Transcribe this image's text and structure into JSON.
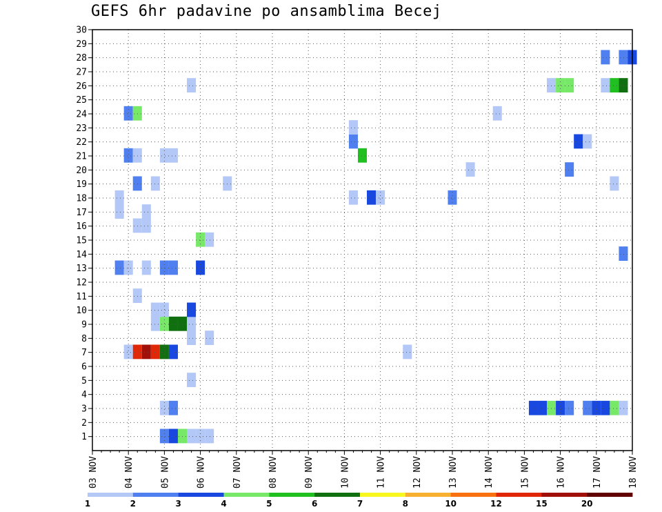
{
  "chart_data": {
    "type": "heatmap",
    "title": "GEFS 6hr padavine po ansamblima Becej",
    "y_ticks": [
      "1",
      "2",
      "3",
      "4",
      "5",
      "6",
      "7",
      "8",
      "9",
      "10",
      "11",
      "12",
      "13",
      "14",
      "15",
      "16",
      "17",
      "18",
      "19",
      "20",
      "21",
      "22",
      "23",
      "24",
      "25",
      "26",
      "27",
      "28",
      "29",
      "30"
    ],
    "x_ticks": [
      "03 NOV",
      "04 NOV",
      "05 NOV",
      "06 NOV",
      "07 NOV",
      "08 NOV",
      "09 NOV",
      "10 NOV",
      "11 NOV",
      "12 NOV",
      "13 NOV",
      "14 NOV",
      "15 NOV",
      "16 NOV",
      "17 NOV",
      "18 NOV"
    ],
    "time_step_hours": 6,
    "legend": {
      "labels": [
        "1",
        "2",
        "3",
        "4",
        "5",
        "6",
        "7",
        "8",
        "10",
        "12",
        "15",
        "20"
      ],
      "colors": [
        "#b4c8f8",
        "#5080f0",
        "#1848e0",
        "#78e868",
        "#20c020",
        "#107010",
        "#f8f820",
        "#f8b030",
        "#f87010",
        "#e02808",
        "#a01008",
        "#600000"
      ]
    },
    "cells": [
      {
        "member": 1,
        "step": 8,
        "cls": 1
      },
      {
        "member": 1,
        "step": 9,
        "cls": 2
      },
      {
        "member": 1,
        "step": 10,
        "cls": 3
      },
      {
        "member": 1,
        "step": 11,
        "cls": 0
      },
      {
        "member": 1,
        "step": 12,
        "cls": 0
      },
      {
        "member": 1,
        "step": 13,
        "cls": 0
      },
      {
        "member": 3,
        "step": 8,
        "cls": 0
      },
      {
        "member": 3,
        "step": 9,
        "cls": 1
      },
      {
        "member": 3,
        "step": 49,
        "cls": 2
      },
      {
        "member": 3,
        "step": 50,
        "cls": 2
      },
      {
        "member": 3,
        "step": 51,
        "cls": 3
      },
      {
        "member": 3,
        "step": 52,
        "cls": 2
      },
      {
        "member": 3,
        "step": 53,
        "cls": 1
      },
      {
        "member": 3,
        "step": 55,
        "cls": 1
      },
      {
        "member": 3,
        "step": 56,
        "cls": 2
      },
      {
        "member": 3,
        "step": 57,
        "cls": 2
      },
      {
        "member": 3,
        "step": 58,
        "cls": 3
      },
      {
        "member": 3,
        "step": 59,
        "cls": 0
      },
      {
        "member": 5,
        "step": 11,
        "cls": 0
      },
      {
        "member": 7,
        "step": 4,
        "cls": 0
      },
      {
        "member": 7,
        "step": 5,
        "cls": 9
      },
      {
        "member": 7,
        "step": 6,
        "cls": 10
      },
      {
        "member": 7,
        "step": 7,
        "cls": 9
      },
      {
        "member": 7,
        "step": 8,
        "cls": 5
      },
      {
        "member": 7,
        "step": 9,
        "cls": 2
      },
      {
        "member": 7,
        "step": 35,
        "cls": 0
      },
      {
        "member": 8,
        "step": 11,
        "cls": 0
      },
      {
        "member": 8,
        "step": 13,
        "cls": 0
      },
      {
        "member": 9,
        "step": 7,
        "cls": 0
      },
      {
        "member": 9,
        "step": 8,
        "cls": 3
      },
      {
        "member": 9,
        "step": 9,
        "cls": 5
      },
      {
        "member": 9,
        "step": 10,
        "cls": 5
      },
      {
        "member": 9,
        "step": 11,
        "cls": 0
      },
      {
        "member": 10,
        "step": 7,
        "cls": 0
      },
      {
        "member": 10,
        "step": 8,
        "cls": 0
      },
      {
        "member": 10,
        "step": 11,
        "cls": 2
      },
      {
        "member": 11,
        "step": 5,
        "cls": 0
      },
      {
        "member": 13,
        "step": 3,
        "cls": 1
      },
      {
        "member": 13,
        "step": 4,
        "cls": 0
      },
      {
        "member": 13,
        "step": 6,
        "cls": 0
      },
      {
        "member": 13,
        "step": 8,
        "cls": 1
      },
      {
        "member": 13,
        "step": 9,
        "cls": 1
      },
      {
        "member": 13,
        "step": 12,
        "cls": 2
      },
      {
        "member": 14,
        "step": 59,
        "cls": 1
      },
      {
        "member": 15,
        "step": 12,
        "cls": 3
      },
      {
        "member": 15,
        "step": 13,
        "cls": 0
      },
      {
        "member": 16,
        "step": 5,
        "cls": 0
      },
      {
        "member": 16,
        "step": 6,
        "cls": 0
      },
      {
        "member": 17,
        "step": 3,
        "cls": 0
      },
      {
        "member": 17,
        "step": 6,
        "cls": 0
      },
      {
        "member": 18,
        "step": 3,
        "cls": 0
      },
      {
        "member": 18,
        "step": 29,
        "cls": 0
      },
      {
        "member": 18,
        "step": 31,
        "cls": 2
      },
      {
        "member": 18,
        "step": 32,
        "cls": 0
      },
      {
        "member": 18,
        "step": 40,
        "cls": 1
      },
      {
        "member": 19,
        "step": 5,
        "cls": 1
      },
      {
        "member": 19,
        "step": 7,
        "cls": 0
      },
      {
        "member": 19,
        "step": 15,
        "cls": 0
      },
      {
        "member": 19,
        "step": 58,
        "cls": 0
      },
      {
        "member": 20,
        "step": 42,
        "cls": 0
      },
      {
        "member": 20,
        "step": 53,
        "cls": 1
      },
      {
        "member": 21,
        "step": 4,
        "cls": 1
      },
      {
        "member": 21,
        "step": 5,
        "cls": 0
      },
      {
        "member": 21,
        "step": 8,
        "cls": 0
      },
      {
        "member": 21,
        "step": 9,
        "cls": 0
      },
      {
        "member": 21,
        "step": 30,
        "cls": 4
      },
      {
        "member": 22,
        "step": 29,
        "cls": 1
      },
      {
        "member": 22,
        "step": 54,
        "cls": 2
      },
      {
        "member": 22,
        "step": 55,
        "cls": 0
      },
      {
        "member": 23,
        "step": 29,
        "cls": 0
      },
      {
        "member": 24,
        "step": 4,
        "cls": 1
      },
      {
        "member": 24,
        "step": 5,
        "cls": 3
      },
      {
        "member": 24,
        "step": 45,
        "cls": 0
      },
      {
        "member": 26,
        "step": 11,
        "cls": 0
      },
      {
        "member": 26,
        "step": 51,
        "cls": 0
      },
      {
        "member": 26,
        "step": 52,
        "cls": 3
      },
      {
        "member": 26,
        "step": 53,
        "cls": 3
      },
      {
        "member": 26,
        "step": 57,
        "cls": 0
      },
      {
        "member": 26,
        "step": 58,
        "cls": 4
      },
      {
        "member": 26,
        "step": 59,
        "cls": 5
      },
      {
        "member": 28,
        "step": 57,
        "cls": 1
      },
      {
        "member": 28,
        "step": 59,
        "cls": 1
      },
      {
        "member": 28,
        "step": 60,
        "cls": 2
      }
    ]
  }
}
